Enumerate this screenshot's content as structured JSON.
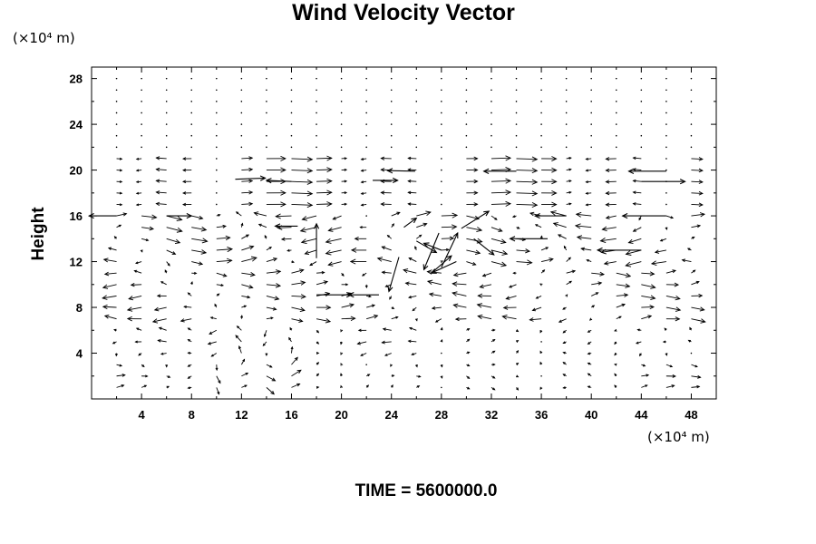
{
  "chart_data": {
    "type": "vector-field",
    "title": "Wind Velocity Vector",
    "x_unit": "(×10⁴ m)",
    "y_unit": "(×10⁴ m)",
    "ylabel": "Height",
    "xlim": [
      0,
      50
    ],
    "ylim": [
      0,
      29
    ],
    "x_ticks": [
      4,
      8,
      12,
      16,
      20,
      24,
      28,
      32,
      36,
      40,
      44,
      48
    ],
    "y_ticks": [
      4,
      8,
      12,
      16,
      20,
      24,
      28
    ],
    "time_label": "TIME = 5600000.0",
    "grid_x": [
      0,
      2,
      4,
      6,
      8,
      10,
      12,
      14,
      16,
      18,
      20,
      22,
      24,
      26,
      28,
      30,
      32,
      34,
      36,
      38,
      40,
      42,
      44,
      46,
      48,
      50
    ],
    "grid_y": [
      1,
      2,
      3,
      4,
      5,
      6,
      7,
      8,
      9,
      10,
      11,
      12,
      13,
      14,
      15,
      16,
      17,
      18,
      19,
      20,
      21,
      22,
      23,
      24,
      25,
      26,
      27,
      28
    ],
    "highlight_vectors": [
      {
        "x": 25.9,
        "y": 19.9,
        "u": -2.2,
        "v": 0.05
      },
      {
        "x": 34.0,
        "y": 19.9,
        "u": -2.6,
        "v": 0
      },
      {
        "x": 46.0,
        "y": 19.9,
        "u": -3.0,
        "v": 0
      },
      {
        "x": 11.5,
        "y": 19.2,
        "u": 2.4,
        "v": 0.1
      },
      {
        "x": 16.0,
        "y": 19.0,
        "u": -2.0,
        "v": 0.1
      },
      {
        "x": 22.5,
        "y": 19.1,
        "u": 2.0,
        "v": 0
      },
      {
        "x": 44.0,
        "y": 19.0,
        "u": 3.5,
        "v": 0
      },
      {
        "x": 2.0,
        "y": 16.0,
        "u": -2.2,
        "v": 0
      },
      {
        "x": 6.0,
        "y": 16.0,
        "u": 2.0,
        "v": 0
      },
      {
        "x": 38.0,
        "y": 16.0,
        "u": -2.5,
        "v": 0
      },
      {
        "x": 46.0,
        "y": 16.0,
        "u": -3.5,
        "v": 0
      },
      {
        "x": 16.5,
        "y": 15.1,
        "u": -1.8,
        "v": 0
      },
      {
        "x": 18.0,
        "y": 12.3,
        "u": 0,
        "v": 3.0
      },
      {
        "x": 36.5,
        "y": 14.0,
        "u": -3.0,
        "v": 0
      },
      {
        "x": 44.0,
        "y": 13.0,
        "u": -3.5,
        "v": 0
      },
      {
        "x": 18.0,
        "y": 9.1,
        "u": 2.8,
        "v": 0
      },
      {
        "x": 23.0,
        "y": 9.1,
        "u": -2.4,
        "v": 0
      },
      {
        "x": 24.6,
        "y": 12.4,
        "u": -0.8,
        "v": -3.0
      },
      {
        "x": 27.8,
        "y": 14.5,
        "u": -1.2,
        "v": -3.2
      },
      {
        "x": 28.0,
        "y": 11.5,
        "u": 1.3,
        "v": 3.0
      },
      {
        "x": 27.2,
        "y": 11.0,
        "u": 1.6,
        "v": 1.5
      },
      {
        "x": 26.0,
        "y": 13.8,
        "u": 1.6,
        "v": -1.0
      },
      {
        "x": 29.6,
        "y": 14.9,
        "u": 2.2,
        "v": 1.5
      },
      {
        "x": 29.2,
        "y": 12.0,
        "u": -2.0,
        "v": -1.0
      },
      {
        "x": 30.6,
        "y": 14.0,
        "u": 1.6,
        "v": -1.4
      },
      {
        "x": 25.0,
        "y": 15.0,
        "u": 1.0,
        "v": 0.8
      },
      {
        "x": 28.0,
        "y": 13.0,
        "u": -1.4,
        "v": 0.6
      }
    ]
  }
}
